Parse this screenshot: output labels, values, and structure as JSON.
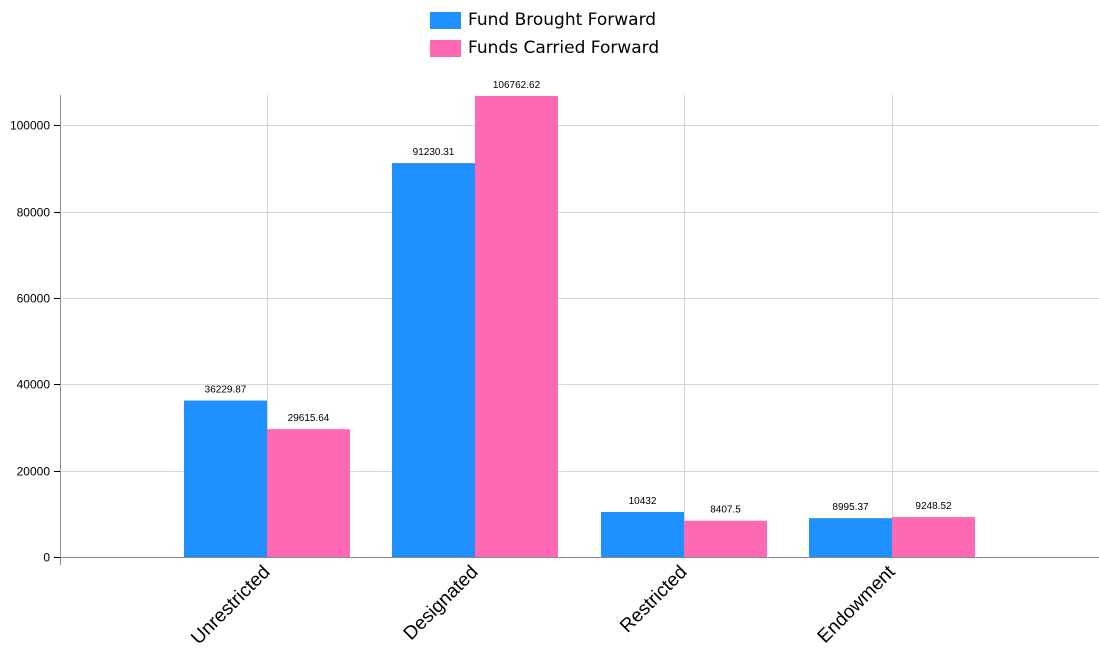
{
  "chart_data": {
    "type": "bar",
    "title": "",
    "xlabel": "",
    "ylabel": "",
    "categories": [
      "Unrestricted",
      "Designated",
      "Restricted",
      "Endowment"
    ],
    "series": [
      {
        "name": "Fund Brought Forward",
        "color": "#1e90ff",
        "values": [
          36229.87,
          91230.31,
          10432,
          8995.37
        ],
        "labels": [
          "36229.87",
          "91230.31",
          "10432",
          "8995.37"
        ]
      },
      {
        "name": "Funds Carried Forward",
        "color": "#ff69b4",
        "values": [
          29615.64,
          106762.62,
          8407.5,
          9248.52
        ],
        "labels": [
          "29615.64",
          "106762.62",
          "8407.5",
          "9248.52"
        ]
      }
    ],
    "ylim": [
      0,
      107000
    ],
    "yticks": [
      0,
      20000,
      40000,
      60000,
      80000,
      100000
    ],
    "ytick_labels": [
      "0",
      "20000",
      "40000",
      "60000",
      "80000",
      "100000"
    ],
    "grid": true,
    "legend": "top-center",
    "x_label_rotation": -45
  }
}
